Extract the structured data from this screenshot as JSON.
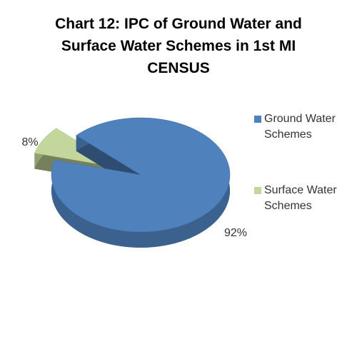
{
  "chart_data": {
    "type": "pie",
    "title": "Chart 12: IPC of Ground Water and Surface Water Schemes in 1st MI CENSUS",
    "series": [
      {
        "name": "Ground Water Schemes",
        "color": "#4f81bd",
        "values": [
          92
        ],
        "value_labels": [
          "92%"
        ]
      },
      {
        "name": "Surface Water Schemes",
        "color": "#c3d69b",
        "values": [
          8
        ],
        "value_labels": [
          "8%"
        ]
      }
    ],
    "legend": "right"
  }
}
